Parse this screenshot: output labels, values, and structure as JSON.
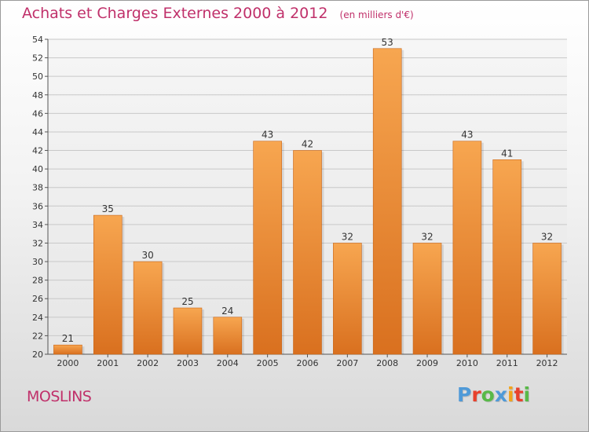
{
  "header": {
    "title": "Achats et Charges Externes 2000 à 2012",
    "subtitle": "(en milliers d'€)"
  },
  "footer": {
    "commune": "MOSLINS",
    "logo_text": "Proxiti",
    "logo_colors": [
      "#4f9ad8",
      "#e8412c",
      "#58b948",
      "#4f9ad8",
      "#f2a31a",
      "#e8412c",
      "#58b948"
    ]
  },
  "chart_data": {
    "type": "bar",
    "title": "Achats et Charges Externes 2000 à 2012",
    "subtitle": "(en milliers d'€)",
    "categories": [
      "2000",
      "2001",
      "2002",
      "2003",
      "2004",
      "2005",
      "2006",
      "2007",
      "2008",
      "2009",
      "2010",
      "2011",
      "2012"
    ],
    "values": [
      21,
      35,
      30,
      25,
      24,
      43,
      42,
      32,
      53,
      32,
      43,
      41,
      32
    ],
    "ylim": [
      20,
      54
    ],
    "yticks": [
      20,
      22,
      24,
      26,
      28,
      30,
      32,
      34,
      36,
      38,
      40,
      42,
      44,
      46,
      48,
      50,
      52,
      54
    ],
    "grid": true,
    "bar_color_top": "#f7a650",
    "bar_color_bottom": "#d9701f"
  }
}
